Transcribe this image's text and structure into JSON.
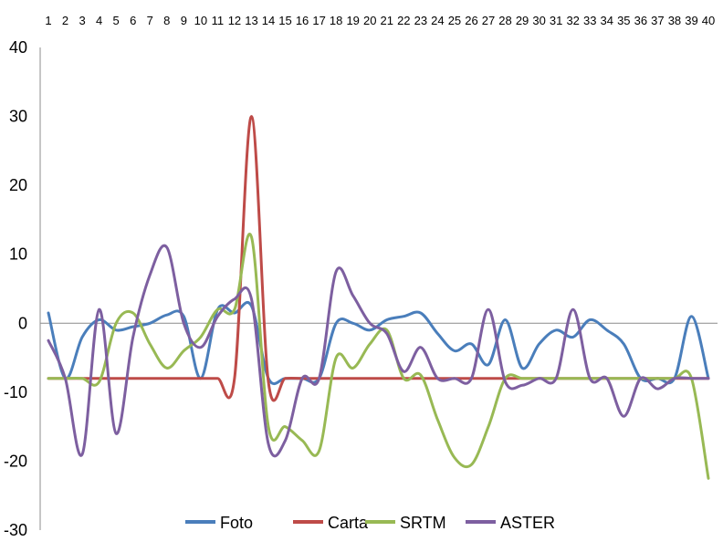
{
  "chart_data": {
    "type": "line",
    "title": "",
    "xlabel": "",
    "ylabel": "",
    "x": [
      1,
      2,
      3,
      4,
      5,
      6,
      7,
      8,
      9,
      10,
      11,
      12,
      13,
      14,
      15,
      16,
      17,
      18,
      19,
      20,
      21,
      22,
      23,
      24,
      25,
      26,
      27,
      28,
      29,
      30,
      31,
      32,
      33,
      34,
      35,
      36,
      37,
      38,
      39,
      40
    ],
    "x_tick_labels": [
      "1",
      "2",
      "3",
      "4",
      "5",
      "6",
      "7",
      "8",
      "9",
      "10",
      "11",
      "12",
      "13",
      "14",
      "15",
      "16",
      "17",
      "18",
      "19",
      "20",
      "21",
      "22",
      "23",
      "24",
      "25",
      "26",
      "27",
      "28",
      "29",
      "30",
      "31",
      "32",
      "33",
      "34",
      "35",
      "36",
      "37",
      "38",
      "39",
      "40"
    ],
    "ylim": [
      -30,
      40
    ],
    "y_ticks": [
      40,
      30,
      20,
      10,
      0,
      -10,
      -20,
      -30
    ],
    "y_tick_labels": [
      "40",
      "30",
      "20",
      "10",
      "0",
      "-10",
      "-20",
      "-30"
    ],
    "x_axis_position": "top",
    "zero_line": true,
    "grid": false,
    "legend_position": "bottom",
    "series": [
      {
        "name": "Foto",
        "color": "#4A7EBB",
        "values": [
          1.5,
          -8,
          -2,
          0.5,
          -1,
          -0.5,
          0,
          1.2,
          1,
          -8,
          2,
          1.5,
          2.5,
          -8,
          -8,
          -8,
          -8,
          0,
          0,
          -1,
          0.5,
          1,
          1.5,
          -1.5,
          -4,
          -3,
          -6,
          0.5,
          -6.5,
          -3,
          -1,
          -2,
          0.5,
          -1,
          -3,
          -8,
          -8,
          -8,
          1,
          -8
        ]
      },
      {
        "name": "Carta",
        "color": "#BE4B48",
        "values": [
          -8,
          -8,
          -8,
          -8,
          -8,
          -8,
          -8,
          -8,
          -8,
          -8,
          -8,
          -8,
          30,
          -8.5,
          -8,
          -8,
          -8,
          -8,
          -8,
          -8,
          -8,
          -8,
          -8,
          -8,
          -8,
          -8,
          -8,
          -8,
          -8,
          -8,
          -8,
          -8,
          -8,
          -8,
          -8,
          -8,
          -8,
          -8,
          -8,
          -8
        ]
      },
      {
        "name": "SRTM",
        "color": "#98B954",
        "values": [
          -8,
          -8,
          -8,
          -8.5,
          0,
          1.5,
          -3,
          -6.5,
          -4,
          -2,
          2,
          2,
          12.5,
          -15,
          -15,
          -17,
          -18.5,
          -5,
          -6.5,
          -3,
          -1,
          -8,
          -7.5,
          -14,
          -19.5,
          -20.5,
          -15,
          -8,
          -8,
          -8,
          -8,
          -8,
          -8,
          -8,
          -8,
          -8,
          -8,
          -8,
          -8,
          -22.5
        ]
      },
      {
        "name": "ASTER",
        "color": "#7D5FA0",
        "values": [
          -2.5,
          -8,
          -19,
          2,
          -16,
          -2,
          7,
          11,
          0,
          -3.5,
          1,
          3.5,
          3.5,
          -17.5,
          -17,
          -8,
          -8,
          7.5,
          4,
          0,
          -1.5,
          -7,
          -3.5,
          -8,
          -8,
          -8,
          2,
          -8.5,
          -9,
          -8,
          -8,
          2,
          -8,
          -8,
          -13.5,
          -8,
          -9.5,
          -8,
          -8,
          -8
        ]
      }
    ]
  }
}
